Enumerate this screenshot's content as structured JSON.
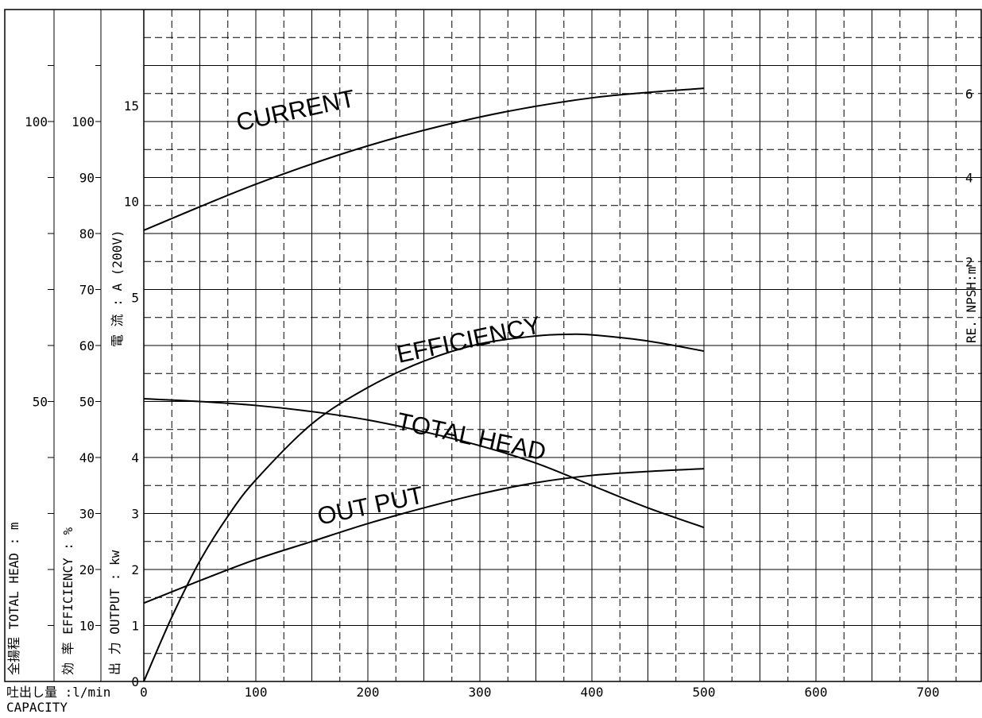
{
  "chart_data": {
    "type": "line",
    "x": {
      "title": "吐出し量 :l/min",
      "title_en": "CAPACITY",
      "range": [
        0,
        750
      ],
      "tick_labels": [
        "0",
        "100",
        "200",
        "300",
        "400",
        "500",
        "600",
        "700"
      ]
    },
    "axes": {
      "total_head": {
        "title": "全揚程 TOTAL HEAD : m",
        "range": [
          0,
          120
        ],
        "tick_labels": [
          "50",
          "100"
        ]
      },
      "efficiency": {
        "title": "効 率 EFFICIENCY : %",
        "range": [
          0,
          120
        ],
        "tick_labels": [
          "10",
          "20",
          "30",
          "40",
          "50",
          "60",
          "70",
          "80",
          "90",
          "100"
        ]
      },
      "output": {
        "title": "出 力 OUTPUT : kw",
        "range": [
          0,
          12
        ],
        "tick_labels": [
          "0",
          "1",
          "2",
          "3",
          "4"
        ]
      },
      "current": {
        "title": "電 流 : A (200V)",
        "range": [
          -15,
          20
        ],
        "tick_labels": [
          "5",
          "10",
          "15"
        ]
      },
      "npsh": {
        "title": "RE. NPSH:m",
        "range": [
          -8,
          8
        ],
        "tick_labels": [
          "2",
          "4",
          "6"
        ]
      }
    },
    "series": [
      {
        "name": "CURRENT",
        "axis": "current",
        "x": [
          0,
          100,
          200,
          300,
          400,
          500
        ],
        "values": [
          8.5,
          10.9,
          12.9,
          14.4,
          15.4,
          15.9
        ]
      },
      {
        "name": "EFFICIENCY",
        "axis": "efficiency",
        "x": [
          0,
          25,
          50,
          75,
          100,
          150,
          200,
          250,
          300,
          350,
          380,
          400,
          450,
          500
        ],
        "values": [
          0,
          11.5,
          21.5,
          29.5,
          36,
          46,
          52.5,
          57.2,
          60.3,
          61.7,
          62,
          61.9,
          60.8,
          59
        ]
      },
      {
        "name": "TOTAL HEAD",
        "axis": "total_head",
        "x": [
          0,
          50,
          100,
          150,
          200,
          250,
          300,
          350,
          400,
          450,
          500
        ],
        "values": [
          50.5,
          50,
          49.3,
          48.2,
          46.7,
          44.6,
          42.1,
          39,
          35,
          31,
          27.5
        ]
      },
      {
        "name": "OUT PUT",
        "axis": "output",
        "x": [
          0,
          50,
          100,
          150,
          200,
          250,
          300,
          350,
          400,
          450,
          500
        ],
        "values": [
          1.4,
          1.8,
          2.18,
          2.5,
          2.82,
          3.1,
          3.35,
          3.55,
          3.68,
          3.75,
          3.8
        ]
      }
    ],
    "grid": true,
    "legend": "none"
  }
}
